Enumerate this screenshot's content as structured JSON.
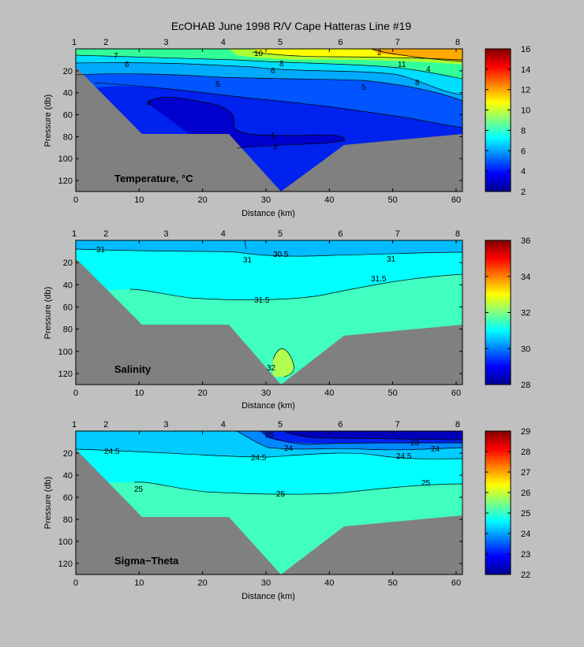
{
  "title": "EcOHAB   June 1998   R/V Cape Hatteras   Line #19",
  "shared": {
    "xlabel": "Distance (km)",
    "ylabel": "Pressure (db)",
    "x_ticks": [
      "0",
      "10",
      "20",
      "30",
      "40",
      "50",
      "60"
    ],
    "y_ticks": [
      "20",
      "40",
      "60",
      "80",
      "100",
      "120"
    ],
    "station_labels": [
      "1",
      "2",
      "3",
      "4",
      "5",
      "6",
      "7",
      "8"
    ],
    "station_x_km": [
      0,
      5,
      14.5,
      23.5,
      32.5,
      42,
      51,
      60.5
    ]
  },
  "chart_data": [
    {
      "type": "heatmap",
      "name": "temperature",
      "label": "Temperature, °C",
      "xlim": [
        0,
        61
      ],
      "ylim": [
        130,
        0
      ],
      "colorbar": {
        "range": [
          2,
          16
        ],
        "ticks": [
          "2",
          "4",
          "6",
          "8",
          "10",
          "12",
          "14",
          "16"
        ]
      },
      "contour_labels": [
        "7",
        "10",
        "6",
        "5",
        "5",
        "4",
        "4",
        "11",
        "6",
        "8",
        "4",
        "8",
        "4",
        "2"
      ],
      "bottom_profile": [
        [
          0,
          17
        ],
        [
          14,
          78
        ],
        [
          24,
          78
        ],
        [
          32,
          130
        ],
        [
          42,
          87
        ],
        [
          60,
          77
        ]
      ]
    },
    {
      "type": "heatmap",
      "name": "salinity",
      "label": "Salinity",
      "xlim": [
        0,
        61
      ],
      "ylim": [
        130,
        0
      ],
      "colorbar": {
        "range": [
          28,
          36
        ],
        "ticks": [
          "28",
          "30",
          "32",
          "34",
          "36"
        ]
      },
      "contour_labels": [
        "31",
        "31",
        "30.5",
        "31",
        "31.5",
        "31.5",
        "32"
      ],
      "bottom_profile": [
        [
          0,
          17
        ],
        [
          14,
          78
        ],
        [
          24,
          78
        ],
        [
          32,
          130
        ],
        [
          42,
          87
        ],
        [
          60,
          77
        ]
      ]
    },
    {
      "type": "heatmap",
      "name": "sigma_theta",
      "label": "Sigma−Theta",
      "xlim": [
        0,
        61
      ],
      "ylim": [
        130,
        0
      ],
      "colorbar": {
        "range": [
          22,
          29
        ],
        "ticks": [
          "22",
          "23",
          "24",
          "25",
          "26",
          "27",
          "28",
          "29"
        ]
      },
      "contour_labels": [
        "24.5",
        "24.5",
        "25",
        "24",
        "23",
        "24",
        "24.5",
        "25",
        "25",
        "25"
      ],
      "bottom_profile": [
        [
          0,
          17
        ],
        [
          14,
          78
        ],
        [
          24,
          78
        ],
        [
          32,
          130
        ],
        [
          42,
          87
        ],
        [
          60,
          77
        ]
      ]
    }
  ],
  "colors": {
    "background": "#c0c0c0",
    "seafloor": "#808080",
    "axis": "#000000"
  }
}
